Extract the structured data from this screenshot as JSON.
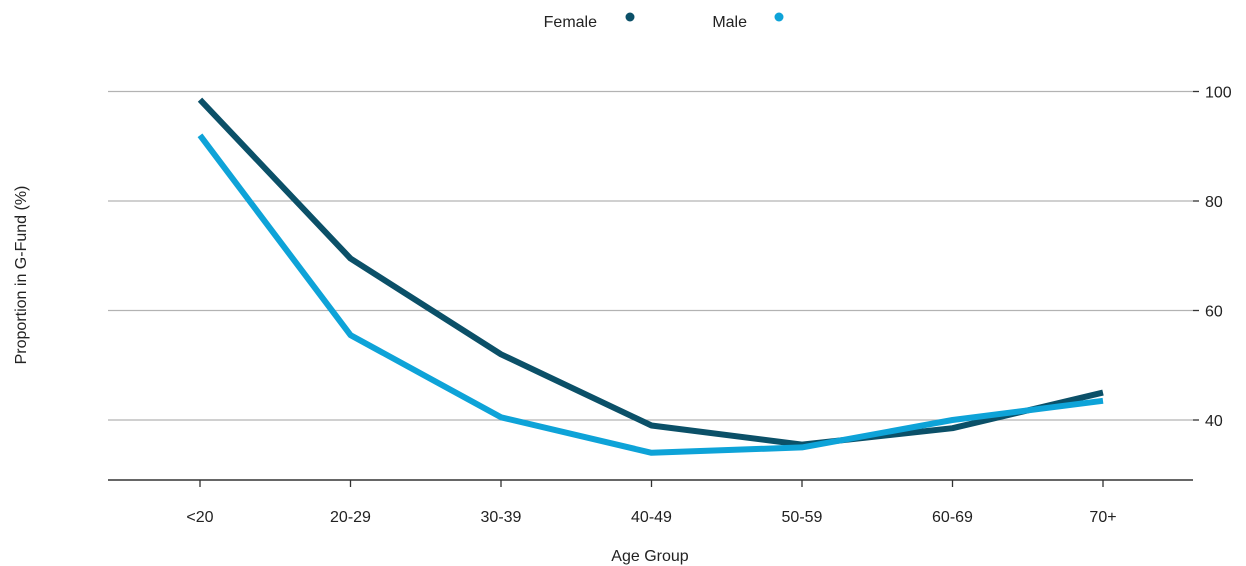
{
  "chart_data": {
    "type": "line",
    "categories": [
      "<20",
      "20-29",
      "30-39",
      "40-49",
      "50-59",
      "60-69",
      "70+"
    ],
    "series": [
      {
        "name": "Female",
        "color": "#0b5068",
        "values": [
          98.5,
          69.5,
          52,
          39,
          35.5,
          38.5,
          45
        ]
      },
      {
        "name": "Male",
        "color": "#0ea3d8",
        "values": [
          92,
          55.5,
          40.5,
          34,
          35,
          40,
          43.5
        ]
      }
    ],
    "xlabel": "Age Group",
    "ylabel": "Proportion in G-Fund (%)",
    "yticks": [
      40,
      60,
      80,
      100
    ],
    "ylim": [
      29.5,
      100
    ],
    "grid": true,
    "y_axis_side": "right",
    "legend_position": "top-center"
  }
}
